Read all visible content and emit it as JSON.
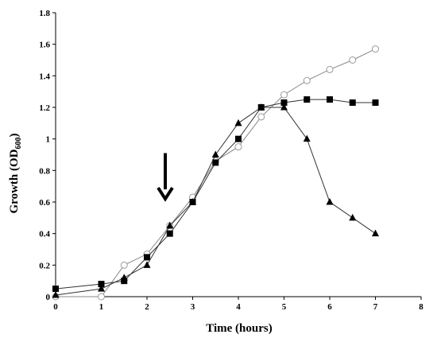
{
  "chart_data": {
    "type": "line",
    "xlabel": "Time (hours)",
    "ylabel_main": "Growth (OD",
    "ylabel_sub": "600",
    "ylabel_end": ")",
    "xlim": [
      0,
      8
    ],
    "ylim": [
      0,
      1.8
    ],
    "x_ticks": [
      "0",
      "1",
      "2",
      "3",
      "4",
      "5",
      "6",
      "7",
      "8"
    ],
    "y_ticks": [
      "0",
      "0.2",
      "0.4",
      "0.6",
      "0.8",
      "1",
      "1.2",
      "1.4",
      "1.6",
      "1.8"
    ],
    "grid": false,
    "legend": "none",
    "series": [
      {
        "marker": "circle-open",
        "color": "#999999",
        "points": [
          [
            0,
            0
          ],
          [
            1,
            0.0
          ],
          [
            1.5,
            0.2
          ],
          [
            2,
            0.27
          ],
          [
            2.5,
            0.45
          ],
          [
            3,
            0.63
          ],
          [
            3.5,
            0.86
          ],
          [
            4,
            0.95
          ],
          [
            4.5,
            1.14
          ],
          [
            5,
            1.28
          ],
          [
            5.5,
            1.37
          ],
          [
            6,
            1.44
          ],
          [
            6.5,
            1.5
          ],
          [
            7,
            1.57
          ]
        ]
      },
      {
        "marker": "square-filled",
        "color": "#000000",
        "points": [
          [
            0,
            0.05
          ],
          [
            1,
            0.08
          ],
          [
            1.5,
            0.1
          ],
          [
            2,
            0.25
          ],
          [
            2.5,
            0.4
          ],
          [
            3,
            0.6
          ],
          [
            3.5,
            0.85
          ],
          [
            4,
            1.0
          ],
          [
            4.5,
            1.2
          ],
          [
            5,
            1.23
          ],
          [
            5.5,
            1.25
          ],
          [
            6,
            1.25
          ],
          [
            6.5,
            1.23
          ],
          [
            7,
            1.23
          ]
        ]
      },
      {
        "marker": "triangle-filled",
        "color": "#000000",
        "points": [
          [
            0,
            0.01
          ],
          [
            1,
            0.05
          ],
          [
            1.5,
            0.12
          ],
          [
            2,
            0.2
          ],
          [
            2.5,
            0.45
          ],
          [
            3,
            0.6
          ],
          [
            3.5,
            0.9
          ],
          [
            4,
            1.1
          ],
          [
            4.5,
            1.2
          ],
          [
            5,
            1.2
          ],
          [
            5.5,
            1.0
          ],
          [
            6,
            0.6
          ],
          [
            6.5,
            0.5
          ],
          [
            7,
            0.4
          ]
        ]
      }
    ],
    "annotations": [
      {
        "type": "arrow-down",
        "x": 2.4,
        "y_top": 0.91,
        "y_bottom": 0.62
      }
    ]
  }
}
